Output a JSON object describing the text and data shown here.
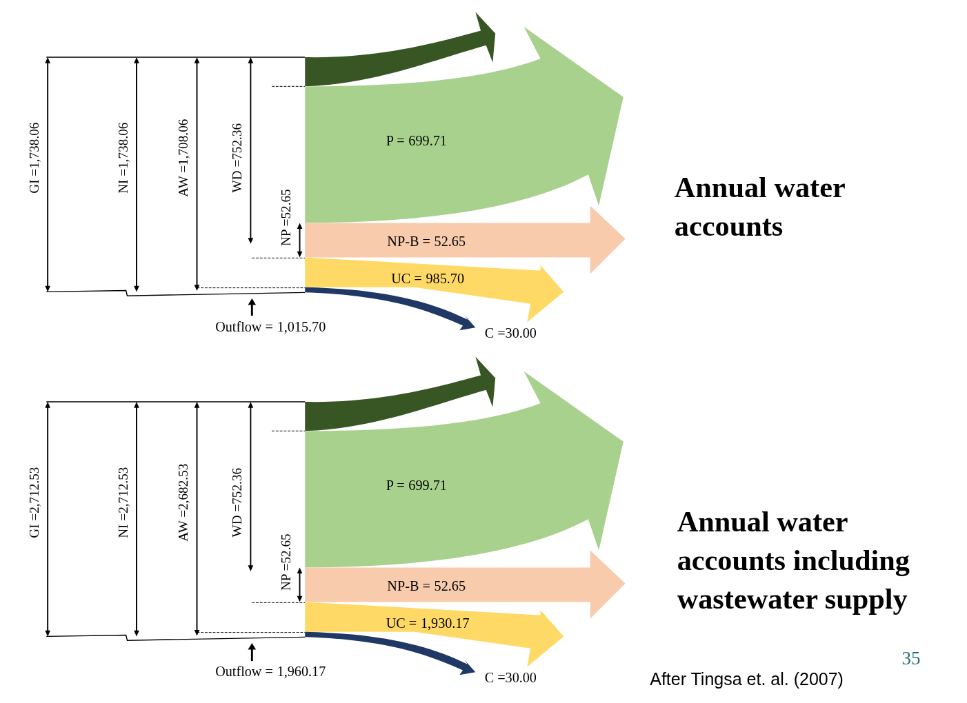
{
  "chart_data": [
    {
      "type": "other",
      "title": "Annual water accounts",
      "categories": [
        "GI =",
        "NI =",
        "AW =",
        "WD =",
        "NP =",
        null,
        "P =",
        "NP-B =",
        "UC =",
        "C =",
        "Outflow ="
      ],
      "values": [
        1738.06,
        1738.06,
        1708.06,
        752.36,
        52.65,
        null,
        699.71,
        52.65,
        985.7,
        30.0,
        1015.7
      ],
      "value_labels": [
        "1,738.06",
        "1,738.06",
        "1,708.06",
        "752.36",
        "52.65",
        null,
        "699.71",
        "52.65",
        "985.70",
        "30.00",
        "1,015.70"
      ],
      "colors": [
        "#000000",
        "#000000",
        "#000000",
        "#000000",
        "#000000",
        "#375623",
        "#a9d18e",
        "#f8cbad",
        "#ffd966",
        "#1f3864",
        "#000000"
      ]
    },
    {
      "type": "other",
      "title": "Annual water accounts including wastewater supply",
      "categories": [
        "GI =",
        "NI =",
        "AW =",
        "WD =",
        "NP =",
        null,
        "P =",
        "NP-B =",
        "UC =",
        "C =",
        "Outflow ="
      ],
      "values": [
        2712.53,
        2712.53,
        2682.53,
        752.36,
        52.65,
        null,
        699.71,
        52.65,
        1930.17,
        30.0,
        1960.17
      ],
      "value_labels": [
        "2,712.53",
        "2,712.53",
        "2,682.53",
        "752.36",
        "52.65",
        null,
        "699.71",
        "52.65",
        "1,930.17",
        "30.00",
        "1,960.17"
      ],
      "colors": [
        "#000000",
        "#000000",
        "#000000",
        "#000000",
        "#000000",
        "#375623",
        "#a9d18e",
        "#f8cbad",
        "#ffd966",
        "#1f3864",
        "#000000"
      ],
      "annotations": [
        "After Tingsa et. al. (2007)",
        "35"
      ]
    }
  ]
}
